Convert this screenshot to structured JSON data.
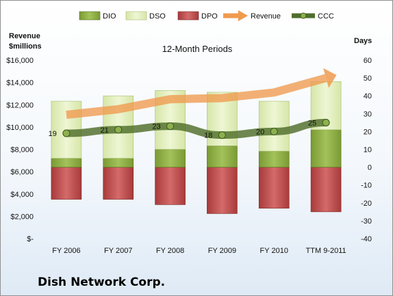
{
  "company": "Dish Network Corp.",
  "colors": {
    "dio": "#7a9a34",
    "dso": "#d6e6a8",
    "dpo": "#a83a3a",
    "revenue": "#f09a4e",
    "ccc": "#4f6e2a"
  },
  "chart_data": {
    "type": "bar",
    "title": "12-Month Periods",
    "categories": [
      "FY 2006",
      "FY 2007",
      "FY 2008",
      "FY 2009",
      "FY 2010",
      "TTM 9-2011"
    ],
    "legend": [
      "DIO",
      "DSO",
      "DPO",
      "Revenue",
      "CCC"
    ],
    "legend_position": "top",
    "grid": false,
    "left_axis": {
      "title_line1": "Revenue",
      "title_line2": "$millions",
      "min": 0,
      "max": 16000,
      "step": 2000,
      "tick_labels": [
        "$-",
        "$2,000",
        "$4,000",
        "$6,000",
        "$8,000",
        "$10,000",
        "$12,000",
        "$14,000",
        "$16,000"
      ]
    },
    "right_axis": {
      "title": "Days",
      "min": -40,
      "max": 60,
      "step": 10,
      "tick_labels": [
        "-40",
        "-30",
        "-20",
        "-10",
        "0",
        "10",
        "20",
        "30",
        "40",
        "50",
        "60"
      ]
    },
    "series": [
      {
        "name": "DIO",
        "type": "stacked-bar",
        "axis": "right",
        "values": [
          5,
          5,
          10,
          12,
          9,
          21
        ]
      },
      {
        "name": "DSO",
        "type": "stacked-bar",
        "axis": "right",
        "values": [
          32,
          35,
          33,
          30,
          28,
          27
        ]
      },
      {
        "name": "DPO",
        "type": "stacked-bar-negative",
        "axis": "right",
        "values": [
          -18,
          -18,
          -21,
          -26,
          -23,
          -25
        ]
      },
      {
        "name": "Revenue",
        "type": "arrow-line",
        "axis": "left",
        "values": [
          11100,
          11600,
          12500,
          12600,
          13100,
          14400
        ]
      },
      {
        "name": "CCC",
        "type": "line",
        "axis": "right",
        "values": [
          19,
          21,
          23,
          18,
          20,
          25
        ]
      }
    ],
    "data_labels": [
      "19",
      "21",
      "23",
      "18",
      "20",
      "25"
    ]
  }
}
